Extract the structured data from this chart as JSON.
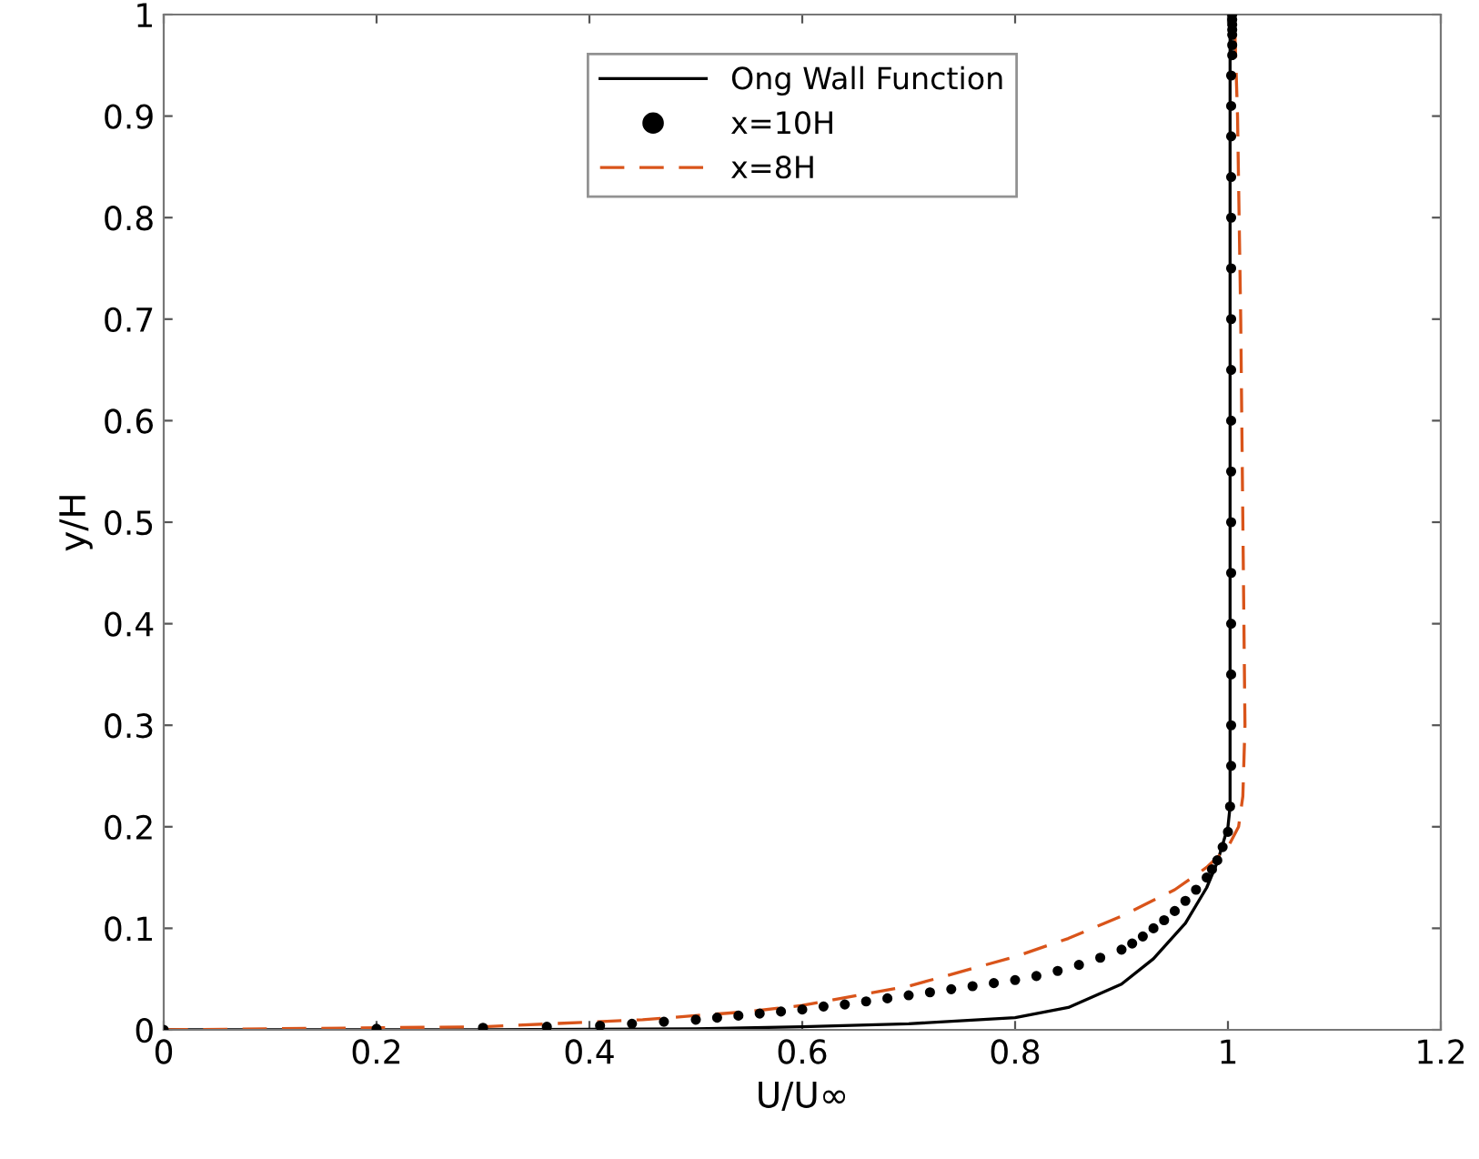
{
  "chart_data": {
    "type": "line",
    "xlabel": "U/U∞",
    "ylabel": "y/H",
    "xlim": [
      0,
      1.2
    ],
    "ylim": [
      0,
      1
    ],
    "xticks": [
      0,
      0.2,
      0.4,
      0.6,
      0.8,
      1,
      1.2
    ],
    "yticks": [
      0,
      0.1,
      0.2,
      0.3,
      0.4,
      0.5,
      0.6,
      0.7,
      0.8,
      0.9,
      1
    ],
    "grid": false,
    "legend": "top",
    "series": [
      {
        "name": "Ong Wall Function",
        "color": "#000000",
        "line_style": "solid",
        "marker": "none",
        "x": [
          0,
          0.3,
          0.5,
          0.6,
          0.7,
          0.8,
          0.85,
          0.9,
          0.93,
          0.96,
          0.98,
          0.99,
          1.0,
          1.002,
          1.002,
          1.002
        ],
        "values": [
          0,
          0.0,
          0.001,
          0.003,
          0.006,
          0.012,
          0.022,
          0.045,
          0.07,
          0.105,
          0.14,
          0.165,
          0.2,
          0.22,
          0.6,
          1.0
        ]
      },
      {
        "name": "x=10H",
        "type": "scatter",
        "color": "#000000",
        "marker": "circle",
        "x": [
          0,
          0.2,
          0.3,
          0.36,
          0.41,
          0.44,
          0.47,
          0.5,
          0.52,
          0.54,
          0.56,
          0.58,
          0.6,
          0.62,
          0.64,
          0.66,
          0.68,
          0.7,
          0.72,
          0.74,
          0.76,
          0.78,
          0.8,
          0.82,
          0.84,
          0.86,
          0.88,
          0.9,
          0.91,
          0.92,
          0.93,
          0.94,
          0.95,
          0.96,
          0.97,
          0.98,
          0.985,
          0.99,
          0.995,
          1.0,
          1.002,
          1.003,
          1.003,
          1.003,
          1.003,
          1.003,
          1.003,
          1.003,
          1.003,
          1.003,
          1.003,
          1.003,
          1.003,
          1.003,
          1.003,
          1.003,
          1.003,
          1.004,
          1.004,
          1.004,
          1.004,
          1.004,
          1.004,
          1.004
        ],
        "values": [
          0,
          0.001,
          0.002,
          0.003,
          0.004,
          0.006,
          0.008,
          0.01,
          0.012,
          0.014,
          0.016,
          0.018,
          0.02,
          0.023,
          0.025,
          0.028,
          0.031,
          0.034,
          0.037,
          0.04,
          0.043,
          0.046,
          0.049,
          0.053,
          0.058,
          0.064,
          0.071,
          0.079,
          0.085,
          0.092,
          0.1,
          0.108,
          0.117,
          0.127,
          0.138,
          0.15,
          0.158,
          0.167,
          0.18,
          0.195,
          0.22,
          0.26,
          0.3,
          0.35,
          0.4,
          0.45,
          0.5,
          0.55,
          0.6,
          0.65,
          0.7,
          0.75,
          0.8,
          0.84,
          0.88,
          0.91,
          0.94,
          0.96,
          0.97,
          0.98,
          0.985,
          0.99,
          0.995,
          1.0
        ]
      },
      {
        "name": "x=8H",
        "color": "#d9541a",
        "line_style": "dashed",
        "marker": "none",
        "x": [
          0,
          0.3,
          0.45,
          0.55,
          0.6,
          0.7,
          0.8,
          0.85,
          0.9,
          0.95,
          0.98,
          1.0,
          1.01,
          1.014,
          1.016,
          1.014,
          1.012,
          1.009,
          1.006
        ],
        "values": [
          0,
          0.003,
          0.01,
          0.018,
          0.024,
          0.043,
          0.072,
          0.09,
          0.112,
          0.138,
          0.16,
          0.18,
          0.2,
          0.23,
          0.3,
          0.5,
          0.7,
          0.9,
          1.0
        ]
      }
    ]
  }
}
